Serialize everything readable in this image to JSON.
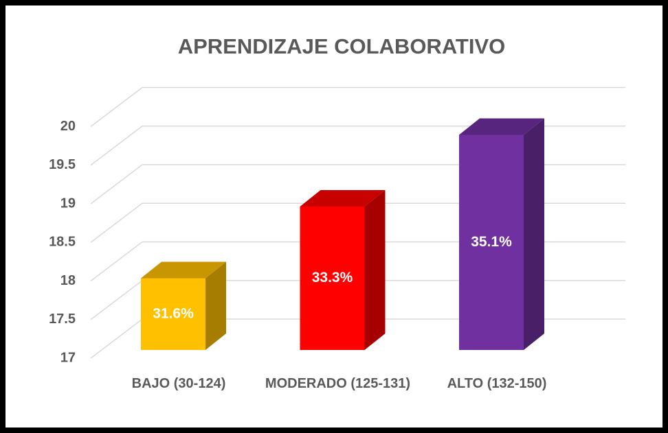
{
  "chart_data": {
    "type": "bar3d",
    "title": "APRENDIZAJE COLABORATIVO",
    "categories": [
      "BAJO (30-124)",
      "MODERADO (125-131)",
      "ALTO (132-150)"
    ],
    "values": [
      18,
      19,
      20
    ],
    "labels": [
      "31.6%",
      "33.3%",
      "35.1%"
    ],
    "colors": [
      "#ffc000",
      "#ff0000",
      "#7030a0"
    ],
    "ylim": [
      17,
      20
    ],
    "yticks": [
      17,
      17.5,
      18,
      18.5,
      19,
      19.5,
      20
    ],
    "grid": true
  }
}
